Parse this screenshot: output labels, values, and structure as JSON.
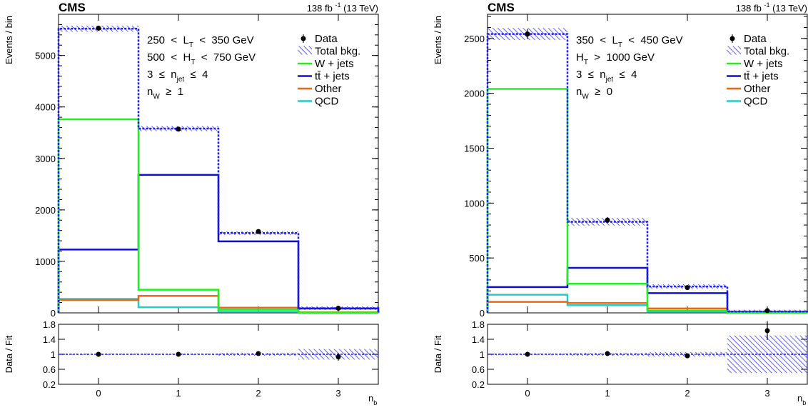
{
  "header": {
    "experiment": "CMS",
    "lumi": "138 fb",
    "lumi_sup": "-1",
    "energy": "(13 TeV)"
  },
  "legend_labels": [
    "Data",
    "Total bkg.",
    "W + jets",
    "tt̄ + jets",
    "Other",
    "QCD"
  ],
  "colors": {
    "data": "#000000",
    "total_bkg": "#1c1cff",
    "wjets": "#22ee22",
    "ttjets": "#1010cc",
    "other": "#ee6611",
    "qcd": "#22cccc"
  },
  "chart_data": [
    {
      "type": "bar",
      "panel": "left",
      "x": [
        0,
        1,
        2,
        3
      ],
      "xlabel": "n_b",
      "xtick_labels": [
        "0",
        "1",
        "2",
        "3"
      ],
      "ylabel": "Events / bin",
      "ylim": [
        0,
        5800
      ],
      "yticks": [
        0,
        1000,
        2000,
        3000,
        4000,
        5000
      ],
      "ytick_labels": [
        "0",
        "1000",
        "2000",
        "3000",
        "4000",
        "5000"
      ],
      "region_lines": [
        [
          "250",
          "<",
          "L",
          "T",
          "<",
          "350 GeV"
        ],
        [
          "500",
          "<",
          "H",
          "T",
          "<",
          "750 GeV"
        ],
        [
          "3",
          "≤",
          "n",
          "jet",
          "≤",
          "4"
        ],
        [
          "n",
          "W",
          "≥",
          "1"
        ]
      ],
      "data": [
        5530,
        3570,
        1580,
        90
      ],
      "data_err": [
        50,
        40,
        25,
        10
      ],
      "series": [
        {
          "name": "Total bkg.",
          "values": [
            5520,
            3580,
            1550,
            90
          ],
          "unc": [
            60,
            50,
            30,
            10
          ]
        },
        {
          "name": "W + jets",
          "values": [
            3760,
            450,
            60,
            5
          ]
        },
        {
          "name": "tt̄ + jets",
          "values": [
            1230,
            2680,
            1390,
            85
          ]
        },
        {
          "name": "Other",
          "values": [
            250,
            330,
            100,
            10
          ]
        },
        {
          "name": "QCD",
          "values": [
            270,
            110,
            20,
            2
          ]
        }
      ],
      "ratio": {
        "ylabel": "Data / Fit",
        "ylim": [
          0.2,
          1.8
        ],
        "yticks": [
          0.2,
          0.6,
          1,
          1.4,
          1.8
        ],
        "ytick_labels": [
          "0.2",
          "0.6",
          "1",
          "1.4",
          "1.8"
        ],
        "values": [
          1.0,
          1.0,
          1.02,
          0.93
        ],
        "err": [
          0.01,
          0.015,
          0.02,
          0.1
        ],
        "band": [
          0.02,
          0.02,
          0.04,
          0.14
        ]
      }
    },
    {
      "type": "bar",
      "panel": "right",
      "x": [
        0,
        1,
        2,
        3
      ],
      "xlabel": "n_b",
      "xtick_labels": [
        "0",
        "1",
        "2",
        "3"
      ],
      "ylabel": "Events / bin",
      "ylim": [
        0,
        2720
      ],
      "yticks": [
        0,
        500,
        1000,
        1500,
        2000,
        2500
      ],
      "ytick_labels": [
        "0",
        "500",
        "1000",
        "1500",
        "2000",
        "2500"
      ],
      "region_lines": [
        [
          "350",
          "<",
          "L",
          "T",
          "<",
          "450 GeV"
        ],
        [
          "H",
          "T",
          ">",
          "1000 GeV"
        ],
        [
          "3",
          "≤",
          "n",
          "jet",
          "≤",
          "4"
        ],
        [
          "n",
          "W",
          "≥",
          "0"
        ]
      ],
      "data": [
        2540,
        845,
        230,
        20
      ],
      "data_err": [
        45,
        28,
        15,
        5
      ],
      "series": [
        {
          "name": "Total bkg.",
          "values": [
            2540,
            830,
            240,
            12
          ],
          "unc": [
            55,
            35,
            20,
            5
          ]
        },
        {
          "name": "W + jets",
          "values": [
            2040,
            265,
            20,
            2
          ]
        },
        {
          "name": "tt̄ + jets",
          "values": [
            235,
            410,
            180,
            10
          ]
        },
        {
          "name": "Other",
          "values": [
            100,
            90,
            40,
            5
          ]
        },
        {
          "name": "QCD",
          "values": [
            165,
            70,
            10,
            1
          ]
        }
      ],
      "ratio": {
        "ylabel": "Data / Fit",
        "ylim": [
          0.2,
          1.8
        ],
        "yticks": [
          0.2,
          0.6,
          1,
          1.4,
          1.8
        ],
        "ytick_labels": [
          "0.2",
          "0.6",
          "1",
          "1.4",
          "1.8"
        ],
        "values": [
          1.0,
          1.02,
          0.96,
          1.63
        ],
        "err": [
          0.02,
          0.02,
          0.04,
          0.25
        ],
        "band": [
          0.025,
          0.04,
          0.06,
          0.5
        ]
      }
    }
  ]
}
